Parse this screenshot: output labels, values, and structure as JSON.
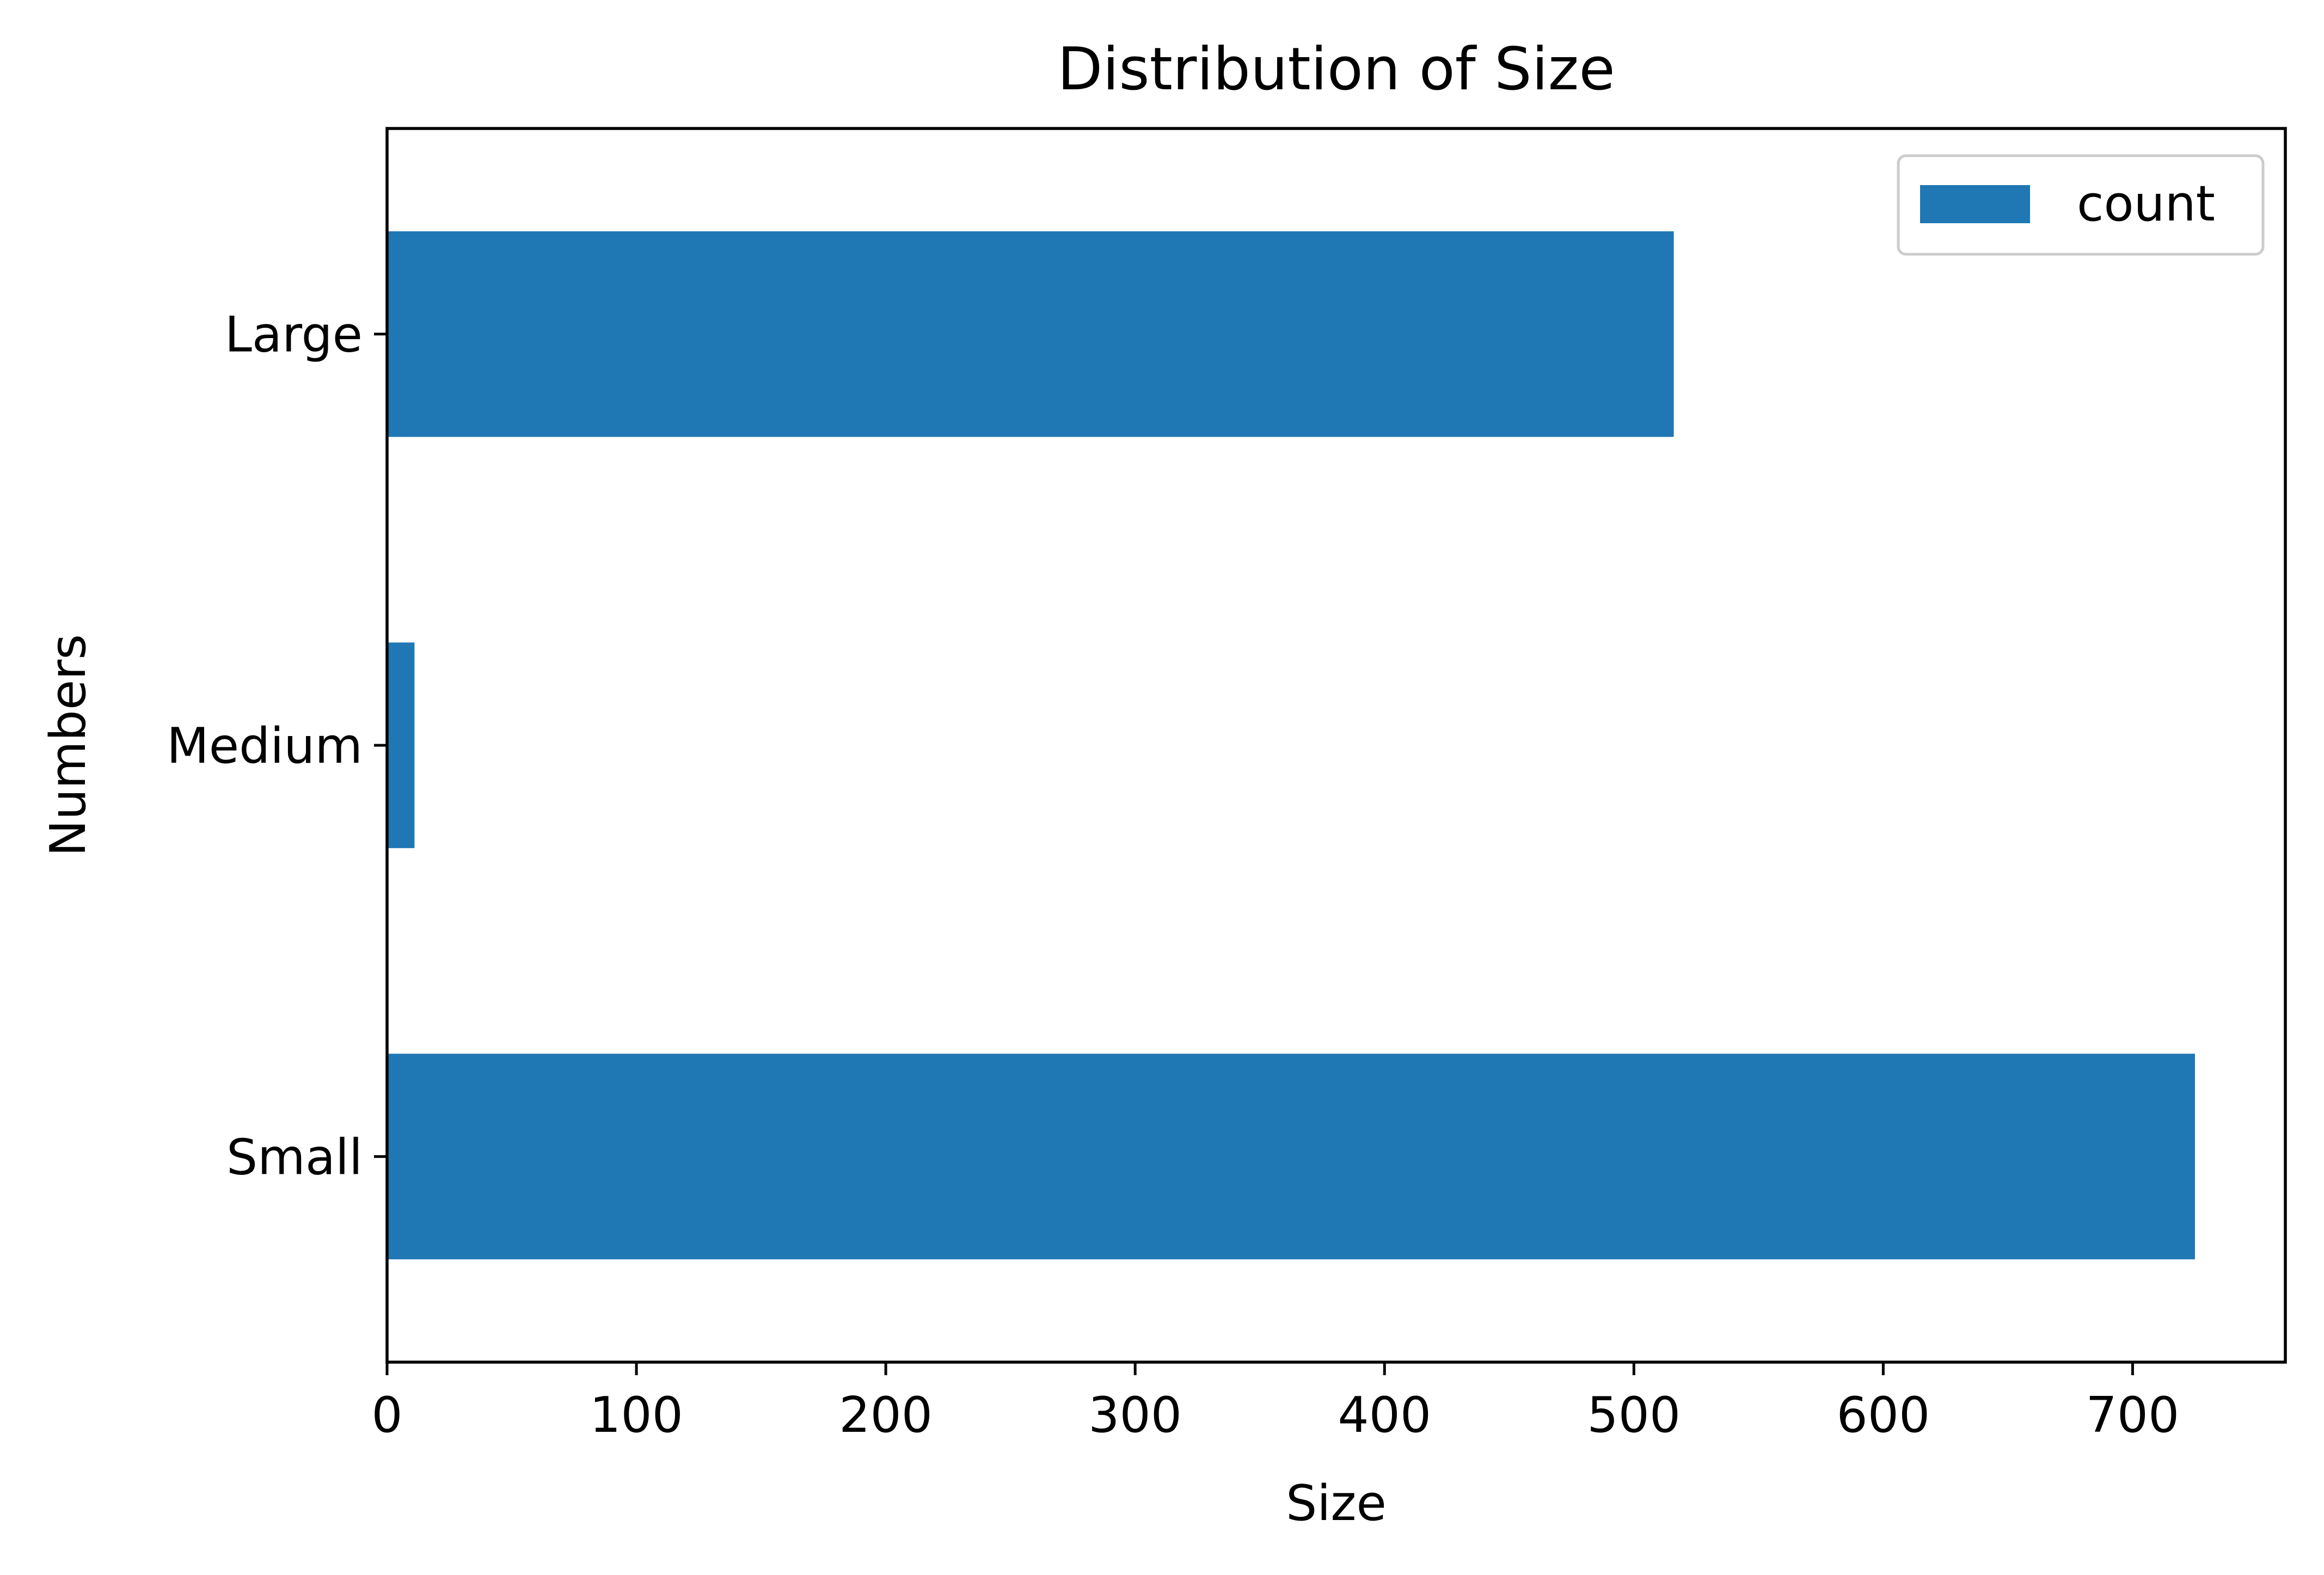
{
  "chart_data": {
    "type": "bar",
    "orientation": "horizontal",
    "title": "Distribution of Size",
    "xlabel": "Size",
    "ylabel": "Numbers",
    "categories": [
      "Large",
      "Medium",
      "Small"
    ],
    "series": [
      {
        "name": "count",
        "values": [
          516,
          11,
          725
        ],
        "color": "#1f77b4"
      }
    ],
    "xlim": [
      0,
      761.25
    ],
    "xticks": [
      0,
      100,
      200,
      300,
      400,
      500,
      600,
      700
    ],
    "grid": false,
    "legend": {
      "position": "top-right"
    }
  }
}
